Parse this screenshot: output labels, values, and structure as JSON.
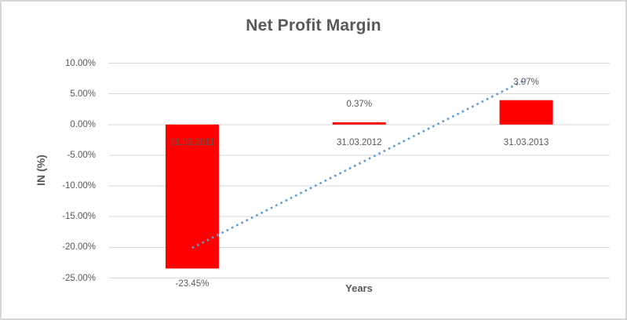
{
  "chart_data": {
    "type": "bar",
    "title": "Net Profit Margin",
    "xlabel": "Years",
    "ylabel": "IN (%)",
    "categories": [
      "31.03.2011",
      "31.03.2012",
      "31.03.2013"
    ],
    "values": [
      -23.45,
      0.37,
      3.97
    ],
    "data_labels": [
      "-23.45%",
      "0.37%",
      "3.97%"
    ],
    "ytick_values": [
      10,
      5,
      0,
      -5,
      -10,
      -15,
      -20,
      -25
    ],
    "ytick_labels": [
      "10.00%",
      "5.00%",
      "0.00%",
      "-5.00%",
      "-10.00%",
      "-15.00%",
      "-20.00%",
      "-25.00%"
    ],
    "ylim": [
      -25,
      10
    ],
    "grid": true,
    "legend": false,
    "bar_color": "#FF0000",
    "gridline_color": "#D9D9D9",
    "text_color": "#595959",
    "trendline": {
      "type": "linear",
      "style": "dotted",
      "color": "#5B9BD5",
      "start_value": -20.08,
      "end_value": 7.34
    }
  }
}
